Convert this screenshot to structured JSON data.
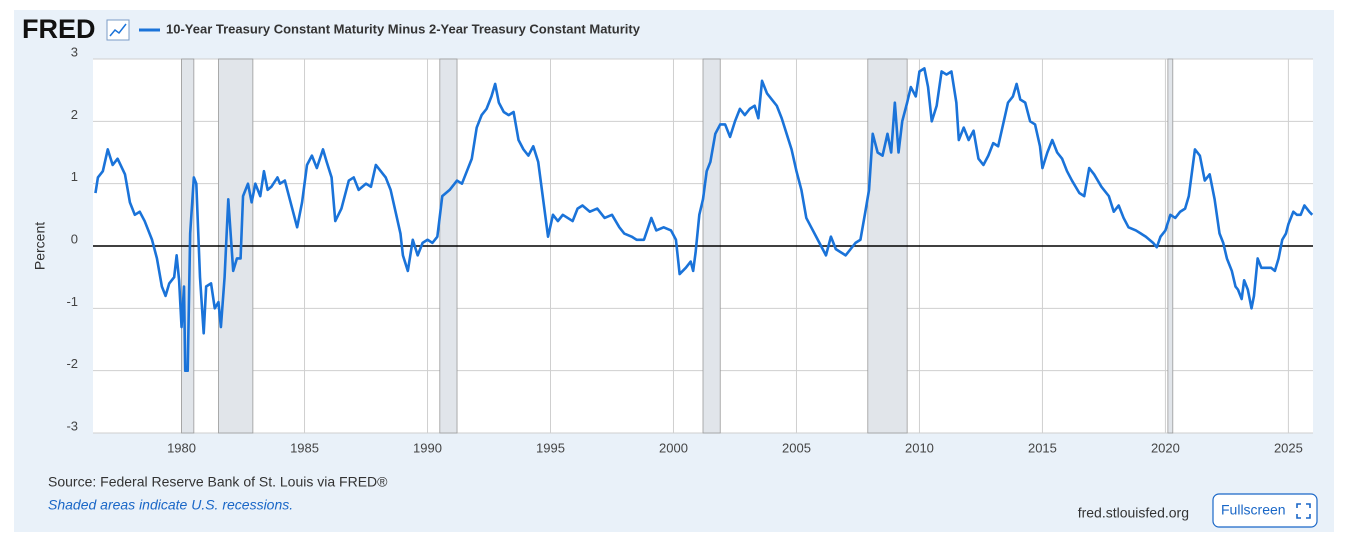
{
  "chart_data": {
    "type": "line",
    "logo": "FRED",
    "ylabel": "Percent",
    "xlim": [
      1976.4,
      2026.0
    ],
    "xticks": [
      1980,
      1985,
      1990,
      1995,
      2000,
      2005,
      2010,
      2015,
      2020,
      2025
    ],
    "ylim": [
      -3,
      3
    ],
    "yticks": [
      3,
      2,
      1,
      0,
      -1,
      -2,
      -3
    ],
    "grid": true,
    "zero_line": 0,
    "recessions": [
      [
        1980.0,
        1980.5
      ],
      [
        1981.5,
        1982.9
      ],
      [
        1990.5,
        1991.2
      ],
      [
        2001.2,
        2001.9
      ],
      [
        2007.9,
        2009.5
      ],
      [
        2020.1,
        2020.3
      ]
    ],
    "x": [
      1976.5,
      1976.6,
      1976.8,
      1977.0,
      1977.2,
      1977.4,
      1977.7,
      1977.9,
      1978.1,
      1978.3,
      1978.5,
      1978.8,
      1979.0,
      1979.2,
      1979.35,
      1979.5,
      1979.7,
      1979.8,
      1979.9,
      1980.0,
      1980.1,
      1980.15,
      1980.25,
      1980.35,
      1980.5,
      1980.6,
      1980.75,
      1980.9,
      1981.0,
      1981.2,
      1981.35,
      1981.5,
      1981.6,
      1981.75,
      1981.9,
      1982.1,
      1982.25,
      1982.4,
      1982.5,
      1982.7,
      1982.85,
      1983.0,
      1983.2,
      1983.35,
      1983.5,
      1983.65,
      1983.9,
      1984.0,
      1984.2,
      1984.5,
      1984.7,
      1984.9,
      1985.1,
      1985.3,
      1985.5,
      1985.75,
      1985.9,
      1986.1,
      1986.25,
      1986.5,
      1986.8,
      1987.0,
      1987.2,
      1987.5,
      1987.7,
      1987.9,
      1988.1,
      1988.3,
      1988.5,
      1988.7,
      1988.9,
      1989.0,
      1989.2,
      1989.4,
      1989.6,
      1989.8,
      1990.0,
      1990.2,
      1990.4,
      1990.6,
      1990.9,
      1991.2,
      1991.4,
      1991.6,
      1991.8,
      1992.0,
      1992.2,
      1992.4,
      1992.6,
      1992.75,
      1992.9,
      1993.1,
      1993.3,
      1993.5,
      1993.7,
      1993.9,
      1994.1,
      1994.3,
      1994.5,
      1994.75,
      1994.9,
      1995.1,
      1995.3,
      1995.5,
      1995.7,
      1995.9,
      1996.1,
      1996.3,
      1996.6,
      1996.9,
      1997.2,
      1997.5,
      1997.8,
      1998.0,
      1998.3,
      1998.5,
      1998.8,
      1999.1,
      1999.3,
      1999.6,
      1999.9,
      2000.1,
      2000.25,
      2000.5,
      2000.7,
      2000.8,
      2000.9,
      2001.05,
      2001.2,
      2001.35,
      2001.5,
      2001.7,
      2001.9,
      2002.1,
      2002.3,
      2002.5,
      2002.7,
      2002.9,
      2003.1,
      2003.3,
      2003.45,
      2003.6,
      2003.8,
      2004.0,
      2004.2,
      2004.4,
      2004.6,
      2004.8,
      2005.0,
      2005.2,
      2005.4,
      2005.6,
      2005.8,
      2006.0,
      2006.2,
      2006.4,
      2006.6,
      2006.8,
      2007.0,
      2007.2,
      2007.4,
      2007.6,
      2007.8,
      2007.95,
      2008.1,
      2008.3,
      2008.5,
      2008.7,
      2008.85,
      2009.0,
      2009.15,
      2009.3,
      2009.5,
      2009.65,
      2009.85,
      2010.0,
      2010.2,
      2010.35,
      2010.5,
      2010.7,
      2010.9,
      2011.1,
      2011.3,
      2011.5,
      2011.6,
      2011.8,
      2012.0,
      2012.2,
      2012.4,
      2012.6,
      2012.8,
      2013.0,
      2013.2,
      2013.4,
      2013.6,
      2013.8,
      2013.95,
      2014.1,
      2014.3,
      2014.5,
      2014.7,
      2014.9,
      2015.0,
      2015.2,
      2015.4,
      2015.6,
      2015.8,
      2016.0,
      2016.2,
      2016.5,
      2016.7,
      2016.9,
      2017.1,
      2017.4,
      2017.7,
      2017.9,
      2018.1,
      2018.3,
      2018.5,
      2018.8,
      2019.0,
      2019.2,
      2019.5,
      2019.65,
      2019.8,
      2020.0,
      2020.2,
      2020.4,
      2020.6,
      2020.8,
      2020.95,
      2021.1,
      2021.2,
      2021.4,
      2021.6,
      2021.8,
      2022.0,
      2022.2,
      2022.35,
      2022.5,
      2022.7,
      2022.85,
      2022.95,
      2023.1,
      2023.2,
      2023.35,
      2023.5,
      2023.6,
      2023.75,
      2023.9,
      2024.1,
      2024.3,
      2024.45,
      2024.6,
      2024.75,
      2024.9,
      2025.0,
      2025.2,
      2025.35,
      2025.5,
      2025.65,
      2025.85,
      2025.97
    ],
    "series": [
      {
        "name": "10-Year Treasury Constant Maturity Minus 2-Year Treasury Constant Maturity",
        "color": "#1a73d9",
        "values": [
          0.85,
          1.1,
          1.2,
          1.55,
          1.3,
          1.4,
          1.15,
          0.7,
          0.5,
          0.55,
          0.4,
          0.1,
          -0.2,
          -0.65,
          -0.8,
          -0.6,
          -0.5,
          -0.15,
          -0.55,
          -1.3,
          -0.65,
          -2.0,
          -2.0,
          0.2,
          1.1,
          1.0,
          -0.5,
          -1.4,
          -0.65,
          -0.6,
          -1.0,
          -0.9,
          -1.3,
          -0.5,
          0.75,
          -0.4,
          -0.2,
          -0.2,
          0.8,
          1.0,
          0.7,
          1.0,
          0.8,
          1.2,
          0.9,
          0.95,
          1.1,
          1.0,
          1.05,
          0.6,
          0.3,
          0.7,
          1.3,
          1.45,
          1.25,
          1.55,
          1.35,
          1.1,
          0.4,
          0.6,
          1.05,
          1.1,
          0.9,
          1.0,
          0.95,
          1.3,
          1.2,
          1.1,
          0.9,
          0.55,
          0.2,
          -0.15,
          -0.4,
          0.1,
          -0.15,
          0.05,
          0.1,
          0.05,
          0.15,
          0.8,
          0.9,
          1.05,
          1.0,
          1.2,
          1.4,
          1.9,
          2.1,
          2.2,
          2.4,
          2.6,
          2.3,
          2.15,
          2.1,
          2.15,
          1.7,
          1.55,
          1.45,
          1.6,
          1.35,
          0.6,
          0.15,
          0.5,
          0.4,
          0.5,
          0.45,
          0.4,
          0.6,
          0.65,
          0.55,
          0.6,
          0.45,
          0.5,
          0.3,
          0.2,
          0.15,
          0.1,
          0.1,
          0.45,
          0.25,
          0.3,
          0.25,
          0.1,
          -0.45,
          -0.35,
          -0.25,
          -0.4,
          -0.1,
          0.5,
          0.75,
          1.2,
          1.35,
          1.8,
          1.95,
          1.95,
          1.75,
          2.0,
          2.2,
          2.1,
          2.2,
          2.25,
          2.05,
          2.65,
          2.45,
          2.35,
          2.25,
          2.05,
          1.8,
          1.55,
          1.2,
          0.9,
          0.45,
          0.3,
          0.15,
          0.0,
          -0.15,
          0.15,
          -0.05,
          -0.1,
          -0.15,
          -0.05,
          0.05,
          0.1,
          0.55,
          0.9,
          1.8,
          1.5,
          1.45,
          1.8,
          1.5,
          2.3,
          1.5,
          2.0,
          2.3,
          2.55,
          2.4,
          2.8,
          2.85,
          2.55,
          2.0,
          2.25,
          2.8,
          2.75,
          2.8,
          2.3,
          1.7,
          1.9,
          1.7,
          1.85,
          1.4,
          1.3,
          1.45,
          1.65,
          1.6,
          1.95,
          2.3,
          2.4,
          2.6,
          2.35,
          2.3,
          2.0,
          1.95,
          1.6,
          1.25,
          1.5,
          1.7,
          1.5,
          1.4,
          1.2,
          1.05,
          0.85,
          0.8,
          1.25,
          1.15,
          0.95,
          0.8,
          0.55,
          0.65,
          0.45,
          0.3,
          0.25,
          0.2,
          0.15,
          0.05,
          -0.02,
          0.15,
          0.25,
          0.5,
          0.45,
          0.55,
          0.6,
          0.8,
          1.25,
          1.55,
          1.45,
          1.05,
          1.15,
          0.75,
          0.2,
          0.05,
          -0.2,
          -0.4,
          -0.65,
          -0.7,
          -0.85,
          -0.55,
          -0.7,
          -1.0,
          -0.8,
          -0.2,
          -0.35,
          -0.35,
          -0.35,
          -0.4,
          -0.2,
          0.1,
          0.2,
          0.35,
          0.55,
          0.5,
          0.5,
          0.65,
          0.55,
          0.5
        ]
      }
    ],
    "source": "Source: Federal Reserve Bank of St. Louis via FRED®",
    "note": "Shaded areas indicate U.S. recessions.",
    "site": "fred.stlouisfed.org",
    "button": "Fullscreen"
  }
}
